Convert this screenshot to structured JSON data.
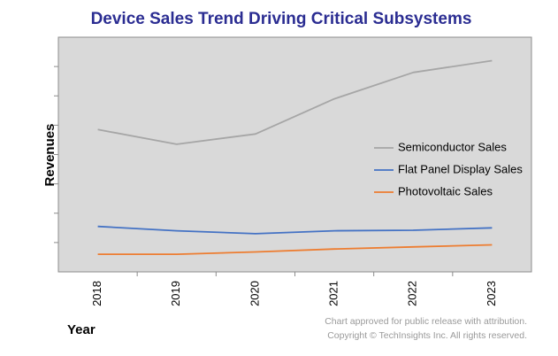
{
  "chart_data": {
    "type": "line",
    "title": "Device Sales Trend Driving Critical Subsystems",
    "xlabel": "Year",
    "ylabel": "Revenues",
    "categories": [
      "2018",
      "2019",
      "2020",
      "2021",
      "2022",
      "2023"
    ],
    "ylim": [
      0,
      8
    ],
    "grid": false,
    "legend_position": "right",
    "series": [
      {
        "name": "Semiconductor Sales",
        "color": "#a6a6a6",
        "values": [
          4.85,
          4.35,
          4.7,
          5.9,
          6.8,
          7.2
        ]
      },
      {
        "name": "Flat Panel Display Sales",
        "color": "#4472c4",
        "values": [
          1.55,
          1.4,
          1.3,
          1.4,
          1.42,
          1.5
        ]
      },
      {
        "name": "Photovoltaic Sales",
        "color": "#ed7d31",
        "values": [
          0.6,
          0.6,
          0.68,
          0.78,
          0.85,
          0.92
        ]
      }
    ]
  },
  "footer": {
    "line1": "Chart approved for public release with attribution.",
    "line2": "Copyright © TechInsights Inc.  All rights reserved."
  }
}
